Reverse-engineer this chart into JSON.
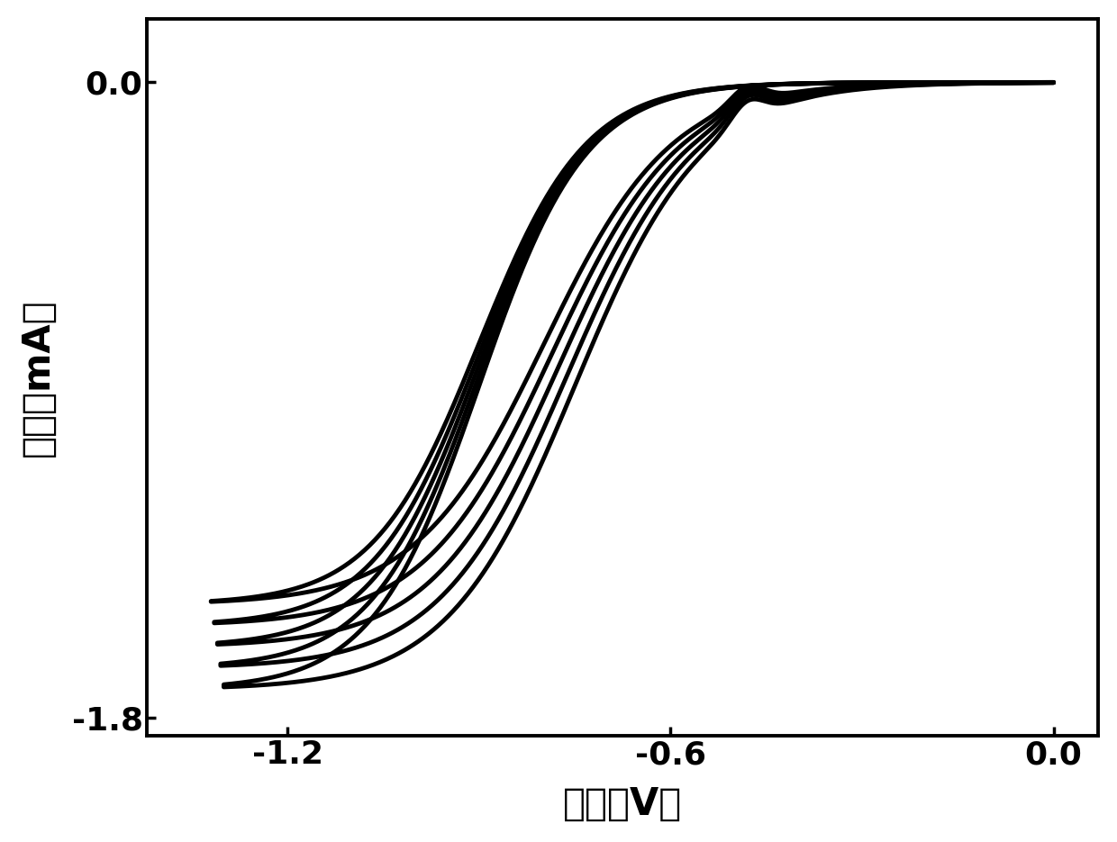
{
  "xlabel": "电压（V）",
  "ylabel": "电流（mA）",
  "xlim": [
    -1.42,
    0.07
  ],
  "ylim": [
    -1.85,
    0.18
  ],
  "xticks": [
    -1.2,
    -0.6,
    0.0
  ],
  "yticks": [
    -1.8,
    0.0
  ],
  "line_color": "#000000",
  "background_color": "#ffffff",
  "num_cycles": 5,
  "xlabel_fontsize": 30,
  "ylabel_fontsize": 30,
  "tick_fontsize": 26,
  "linewidth": 3.5
}
